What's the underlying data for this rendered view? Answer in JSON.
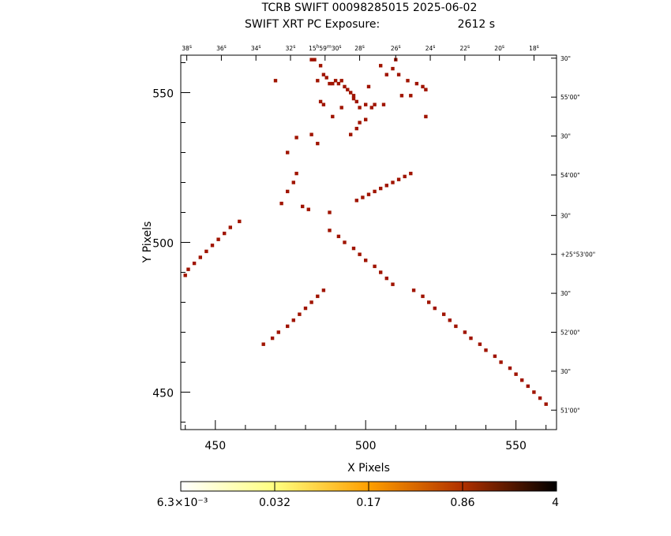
{
  "chart_data": {
    "type": "heatmap",
    "title": "TCRB SWIFT 00098285015 2025-06-02",
    "subtitle_label": "SWIFT XRT PC Exposure:",
    "subtitle_value": "2612 s",
    "xlabel": "X Pixels",
    "ylabel": "Y Pixels",
    "xlim": [
      438.5,
      563.5
    ],
    "ylim": [
      437.5,
      562.5
    ],
    "x_ticks": [
      {
        "value": 450,
        "label": "450"
      },
      {
        "value": 500,
        "label": "500"
      },
      {
        "value": 550,
        "label": "550"
      }
    ],
    "y_ticks": [
      {
        "value": 450,
        "label": "450"
      },
      {
        "value": 500,
        "label": "500"
      },
      {
        "value": 550,
        "label": "550"
      }
    ],
    "ra_ticks": [
      {
        "label": "38s",
        "x": 440.5
      },
      {
        "label": "36s",
        "x": 452
      },
      {
        "label": "34s",
        "x": 463.5
      },
      {
        "label": "32s",
        "x": 475
      },
      {
        "label": "15h59m30s",
        "x": 486.5
      },
      {
        "label": "28s",
        "x": 498
      },
      {
        "label": "26s",
        "x": 510
      },
      {
        "label": "24s",
        "x": 521.5
      },
      {
        "label": "22s",
        "x": 533
      },
      {
        "label": "20s",
        "x": 544.5
      },
      {
        "label": "18s",
        "x": 556
      }
    ],
    "dec_ticks": [
      {
        "label": "30\"",
        "y": 561.5
      },
      {
        "label": "55'00\"",
        "y": 548.5
      },
      {
        "label": "30\"",
        "y": 535.5
      },
      {
        "label": "54'00\"",
        "y": 522.5
      },
      {
        "label": "30\"",
        "y": 509
      },
      {
        "label": "+25°53'00\"",
        "y": 496
      },
      {
        "label": "30\"",
        "y": 483
      },
      {
        "label": "52'00\"",
        "y": 470
      },
      {
        "label": "30\"",
        "y": 457
      },
      {
        "label": "51'00\"",
        "y": 444
      }
    ],
    "colorbar": {
      "labels": [
        "6.3×10⁻³",
        "0.032",
        "0.17",
        "0.86",
        "4"
      ],
      "colors": [
        "#ffffff",
        "#ffff80",
        "#ff9f00",
        "#b03000",
        "#000000"
      ]
    },
    "points": [
      [
        489,
        542
      ],
      [
        485,
        547
      ],
      [
        486,
        546
      ],
      [
        483,
        561
      ],
      [
        501,
        552
      ],
      [
        488,
        510
      ],
      [
        482,
        536
      ],
      [
        484,
        533
      ],
      [
        477,
        535
      ],
      [
        474,
        530
      ],
      [
        470,
        554
      ],
      [
        482,
        561
      ],
      [
        484,
        554
      ],
      [
        485,
        559
      ],
      [
        486,
        556
      ],
      [
        487,
        555
      ],
      [
        488,
        553
      ],
      [
        489,
        553
      ],
      [
        490,
        554
      ],
      [
        491,
        553
      ],
      [
        492,
        554
      ],
      [
        493,
        552
      ],
      [
        494,
        551
      ],
      [
        495,
        550
      ],
      [
        496,
        549
      ],
      [
        496,
        548
      ],
      [
        497,
        547
      ],
      [
        492,
        545
      ],
      [
        498,
        545
      ],
      [
        500,
        546
      ],
      [
        505,
        559
      ],
      [
        507,
        556
      ],
      [
        509,
        558
      ],
      [
        510,
        561
      ],
      [
        511,
        556
      ],
      [
        514,
        554
      ],
      [
        517,
        553
      ],
      [
        519,
        552
      ],
      [
        520,
        551
      ],
      [
        520,
        542
      ],
      [
        512,
        549
      ],
      [
        515,
        549
      ],
      [
        506,
        546
      ],
      [
        503,
        546
      ],
      [
        502,
        545
      ],
      [
        500,
        541
      ],
      [
        498,
        540
      ],
      [
        497,
        538
      ],
      [
        495,
        536
      ],
      [
        477,
        523
      ],
      [
        476,
        520
      ],
      [
        474,
        517
      ],
      [
        472,
        513
      ],
      [
        479,
        512
      ],
      [
        481,
        511
      ],
      [
        458,
        507
      ],
      [
        455,
        505
      ],
      [
        453,
        503
      ],
      [
        451,
        501
      ],
      [
        449,
        499
      ],
      [
        447,
        497
      ],
      [
        445,
        495
      ],
      [
        443,
        493
      ],
      [
        441,
        491
      ],
      [
        440,
        489
      ],
      [
        488,
        504
      ],
      [
        491,
        502
      ],
      [
        493,
        500
      ],
      [
        496,
        498
      ],
      [
        498,
        496
      ],
      [
        500,
        494
      ],
      [
        503,
        492
      ],
      [
        505,
        490
      ],
      [
        507,
        488
      ],
      [
        509,
        486
      ],
      [
        486,
        484
      ],
      [
        484,
        482
      ],
      [
        482,
        480
      ],
      [
        480,
        478
      ],
      [
        478,
        476
      ],
      [
        476,
        474
      ],
      [
        474,
        472
      ],
      [
        471,
        470
      ],
      [
        469,
        468
      ],
      [
        466,
        466
      ],
      [
        516,
        484
      ],
      [
        519,
        482
      ],
      [
        521,
        480
      ],
      [
        523,
        478
      ],
      [
        526,
        476
      ],
      [
        528,
        474
      ],
      [
        530,
        472
      ],
      [
        533,
        470
      ],
      [
        535,
        468
      ],
      [
        538,
        466
      ],
      [
        540,
        464
      ],
      [
        543,
        462
      ],
      [
        545,
        460
      ],
      [
        548,
        458
      ],
      [
        550,
        456
      ],
      [
        552,
        454
      ],
      [
        554,
        452
      ],
      [
        556,
        450
      ],
      [
        558,
        448
      ],
      [
        560,
        446
      ],
      [
        497,
        514
      ],
      [
        499,
        515
      ],
      [
        501,
        516
      ],
      [
        503,
        517
      ],
      [
        505,
        518
      ],
      [
        507,
        519
      ],
      [
        509,
        520
      ],
      [
        511,
        521
      ],
      [
        513,
        522
      ],
      [
        515,
        523
      ]
    ]
  }
}
